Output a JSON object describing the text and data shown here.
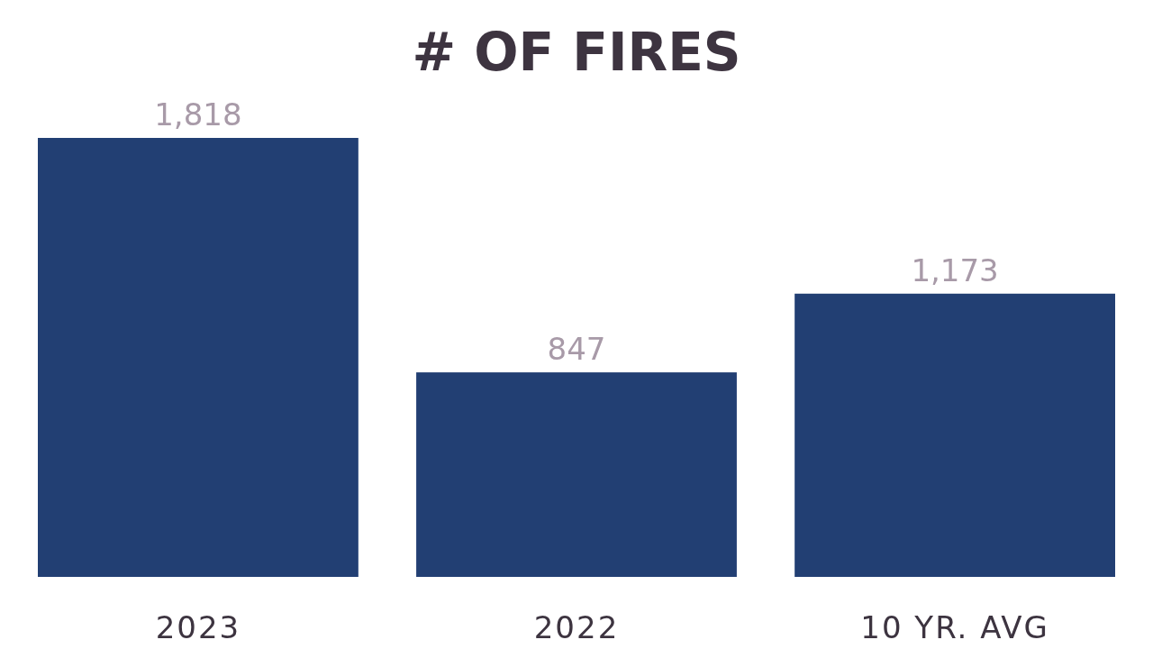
{
  "chart_data": {
    "type": "bar",
    "title": "# OF FIRES",
    "categories": [
      "2023",
      "2022",
      "10 YR. AVG"
    ],
    "values": [
      1818,
      847,
      1173
    ],
    "value_labels": [
      "1,818",
      "847",
      "1,173"
    ],
    "color": "#223f73"
  }
}
